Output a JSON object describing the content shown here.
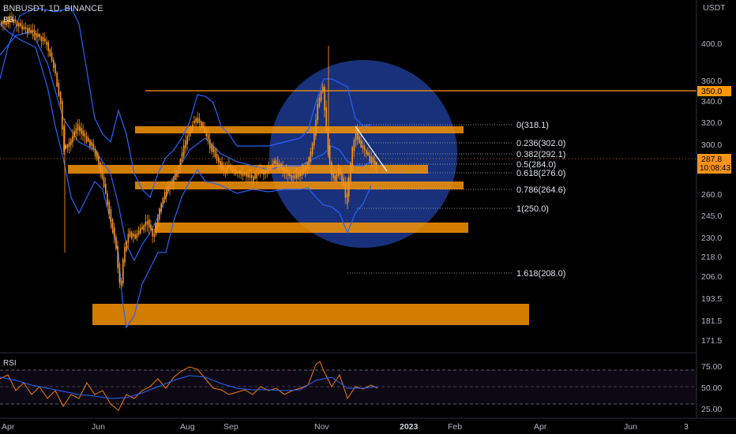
{
  "header": {
    "symbol": "BNBUSDT, 1D, BINANCE",
    "indicator": "BB"
  },
  "rsi": {
    "label": "RSI",
    "ticks": [
      "75.00",
      "50.00",
      "25.00"
    ]
  },
  "price_axis": {
    "currency": "USDT",
    "ticks": [
      "400.0",
      "360.0",
      "340.0",
      "320.0",
      "300.0",
      "260.0",
      "245.0",
      "230.0",
      "218.0",
      "206.0",
      "193.5",
      "181.5",
      "171.5"
    ],
    "hline_label": "350.0",
    "last_price": "287.8",
    "countdown": "10:08:43"
  },
  "time_axis": {
    "ticks": [
      "Apr",
      "Jun",
      "Aug",
      "Sep",
      "Nov",
      "2023",
      "Feb",
      "Apr",
      "Jun",
      "3"
    ]
  },
  "colors": {
    "bg": "#000000",
    "candle": "#f7931a",
    "band": "#2962ff",
    "zone": "#ff9800",
    "circle": "#1c3a8f",
    "rsi": "#f57c00",
    "rsi_ma": "#2962ff"
  },
  "chart_data": {
    "type": "candlestick",
    "title": "",
    "y_scale": "log",
    "ylim": [
      165,
      440
    ],
    "fib_levels": [
      {
        "label": "0(318.1)",
        "price": 318.1
      },
      {
        "label": "0.236(302.0)",
        "price": 302.0
      },
      {
        "label": "0.382(292.1)",
        "price": 292.1
      },
      {
        "label": "0.5(284.0)",
        "price": 284.0
      },
      {
        "label": "0.618(276.0)",
        "price": 276.0
      },
      {
        "label": "0.786(264.6)",
        "price": 264.6
      },
      {
        "label": "1(250.0)",
        "price": 250.0
      },
      {
        "label": "1.618(208.0)",
        "price": 208.0
      }
    ],
    "support_resistance_zones": [
      {
        "low": 310,
        "high": 316
      },
      {
        "low": 274,
        "high": 281
      },
      {
        "low": 265,
        "high": 270
      },
      {
        "low": 234,
        "high": 241
      },
      {
        "low": 173,
        "high": 185
      }
    ],
    "horizontal_line": 350.0,
    "last_price": 287.8
  }
}
